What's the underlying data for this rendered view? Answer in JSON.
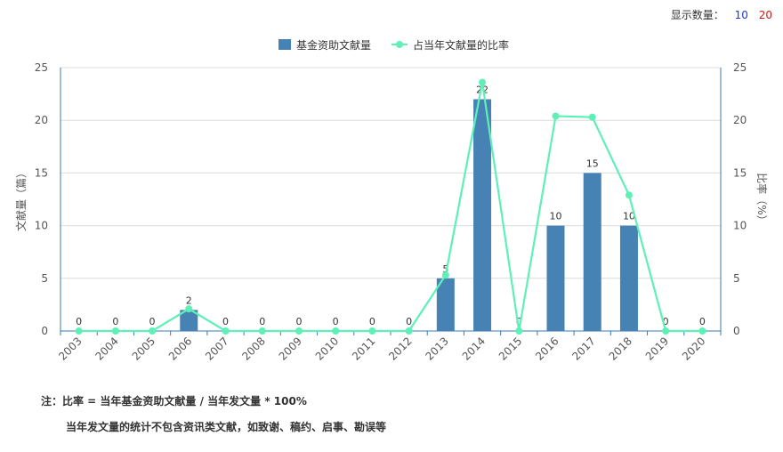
{
  "controls": {
    "label": "显示数量：",
    "option_10": "10",
    "option_20": "20"
  },
  "notes": {
    "line1": "注：比率 = 当年基金资助文献量 / 当年发文量 * 100%",
    "line2": "当年发文量的统计不包含资讯类文献，如致谢、稿约、启事、勘误等"
  },
  "chart_data": {
    "type": "bar+line",
    "categories": [
      "2003",
      "2004",
      "2005",
      "2006",
      "2007",
      "2008",
      "2009",
      "2010",
      "2011",
      "2012",
      "2013",
      "2014",
      "2015",
      "2016",
      "2017",
      "2018",
      "2019",
      "2020"
    ],
    "series": [
      {
        "name": "基金资助文献量",
        "type": "bar",
        "axis": "left",
        "color": "#4682b4",
        "values": [
          0,
          0,
          0,
          2,
          0,
          0,
          0,
          0,
          0,
          0,
          5,
          22,
          0,
          10,
          15,
          10,
          0,
          0
        ]
      },
      {
        "name": "占当年文献量的比率",
        "type": "line",
        "axis": "right",
        "color": "#5ff0b8",
        "values": [
          0,
          0,
          0,
          2.1,
          0,
          0,
          0,
          0,
          0,
          0,
          5.3,
          23.6,
          0,
          20.4,
          20.3,
          12.9,
          0,
          0
        ]
      }
    ],
    "ylabel_left": "文献量（篇）",
    "ylabel_right": "比率（%）",
    "ylim_left": [
      0,
      25
    ],
    "ylim_right": [
      0,
      25
    ],
    "yticks": [
      0,
      5,
      10,
      15,
      20,
      25
    ],
    "legend_position": "top-center",
    "grid": true
  }
}
